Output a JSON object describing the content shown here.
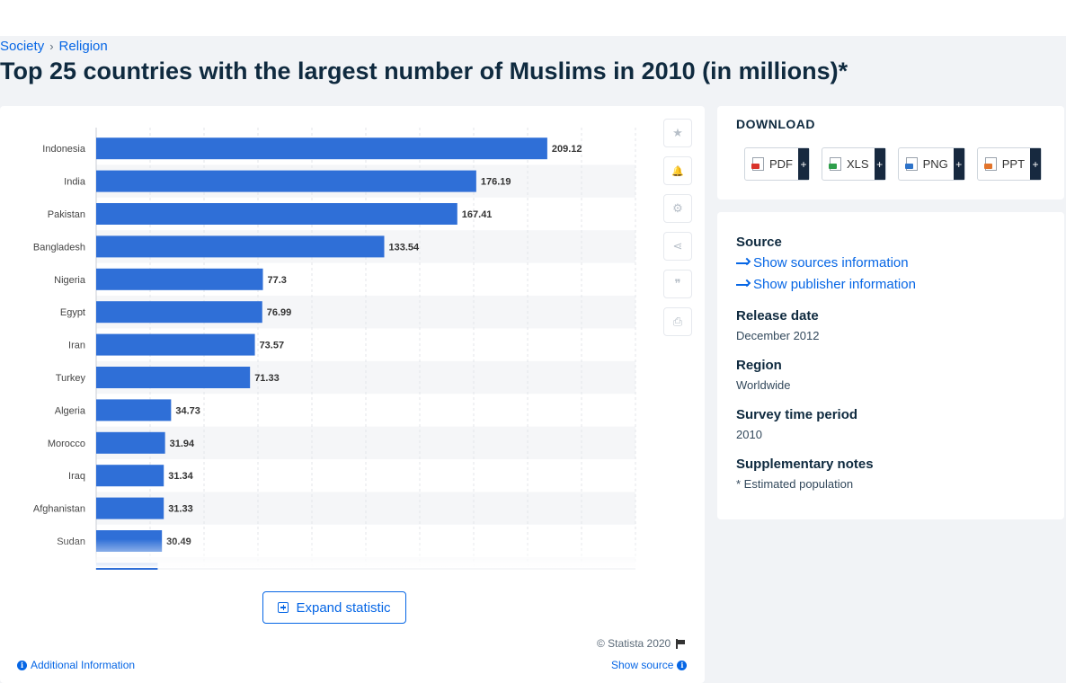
{
  "breadcrumb": {
    "items": [
      "Society",
      "Religion"
    ],
    "separator": "›"
  },
  "page_title": "Top 25 countries with the largest number of Muslims in 2010 (in millions)*",
  "chart_data": {
    "type": "bar",
    "orientation": "horizontal",
    "categories": [
      "Indonesia",
      "India",
      "Pakistan",
      "Bangladesh",
      "Nigeria",
      "Egypt",
      "Iran",
      "Turkey",
      "Algeria",
      "Morocco",
      "Iraq",
      "Afghanistan",
      "Sudan"
    ],
    "values": [
      209.12,
      176.19,
      167.41,
      133.54,
      77.3,
      76.99,
      73.57,
      71.33,
      34.73,
      31.94,
      31.34,
      31.33,
      30.49
    ],
    "partially_visible_bar_value": 28.5,
    "xlim": [
      0,
      250
    ],
    "grid": true,
    "bar_color": "#2f6fd7",
    "title": "",
    "xlabel": "",
    "ylabel": ""
  },
  "tools": [
    {
      "name": "favorite-button",
      "icon": "star-icon",
      "glyph": "★"
    },
    {
      "name": "notification-button",
      "icon": "bell-icon",
      "glyph": "🔔"
    },
    {
      "name": "settings-button",
      "icon": "gear-icon",
      "glyph": "⚙"
    },
    {
      "name": "share-button",
      "icon": "share-icon",
      "glyph": "⋖"
    },
    {
      "name": "cite-button",
      "icon": "quote-icon",
      "glyph": "❞"
    },
    {
      "name": "print-button",
      "icon": "print-icon",
      "glyph": "⎙"
    }
  ],
  "expand_label": "Expand statistic",
  "copyright": "© Statista 2020",
  "additional_info_label": "Additional Information",
  "show_source_label": "Show source",
  "download": {
    "heading": "DOWNLOAD",
    "buttons": [
      {
        "label": "PDF",
        "icon": "pdf-file-icon",
        "color": "#d9342b"
      },
      {
        "label": "XLS",
        "icon": "xls-file-icon",
        "color": "#2e9e4b"
      },
      {
        "label": "PNG",
        "icon": "png-file-icon",
        "color": "#2e73c9"
      },
      {
        "label": "PPT",
        "icon": "ppt-file-icon",
        "color": "#e2742b"
      }
    ],
    "plus": "+"
  },
  "details": {
    "source_label": "Source",
    "sources_link": "Show sources information",
    "publisher_link": "Show publisher information",
    "release_label": "Release date",
    "release_value": "December 2012",
    "region_label": "Region",
    "region_value": "Worldwide",
    "period_label": "Survey time period",
    "period_value": "2010",
    "notes_label": "Supplementary notes",
    "notes_value": "* Estimated population"
  },
  "colors": {
    "accent": "#0666e5",
    "title": "#0f2a3f",
    "bar": "#2f6fd7"
  }
}
